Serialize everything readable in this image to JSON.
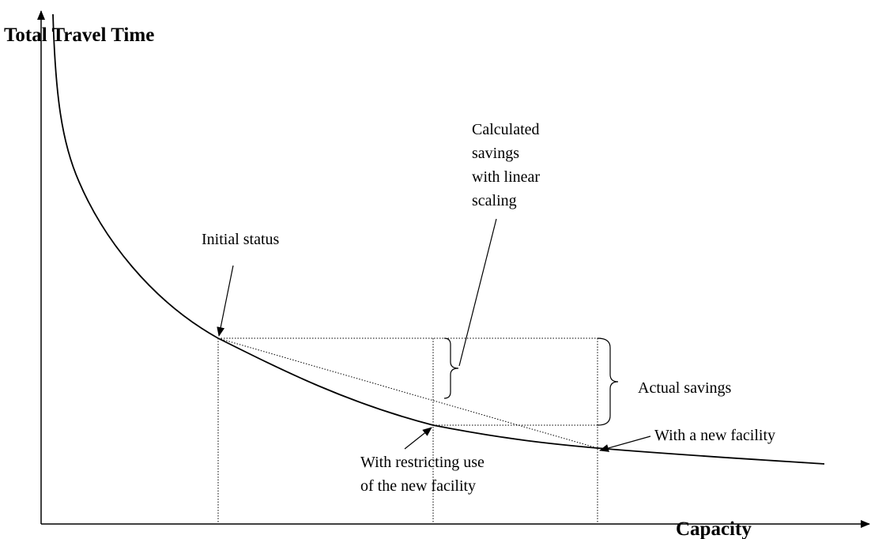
{
  "axes": {
    "y_label": "Total Travel Time",
    "x_label": "Capacity"
  },
  "annotations": {
    "initial_status": "Initial status",
    "calculated_savings": [
      "Calculated",
      "savings",
      "with linear",
      "scaling"
    ],
    "actual_savings": "Actual savings",
    "new_facility": "With a new facility",
    "restricting_use": [
      "With restricting use",
      "of the new facility"
    ]
  }
}
